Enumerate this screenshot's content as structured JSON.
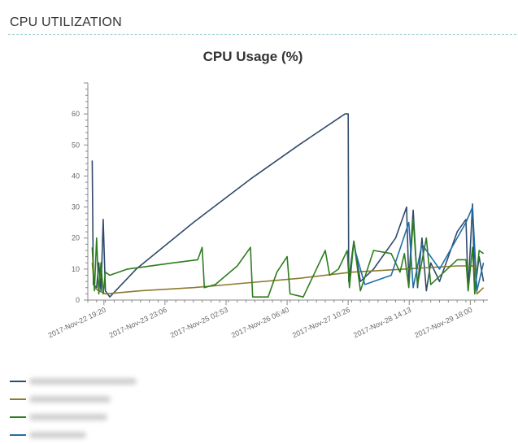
{
  "header": {
    "title": "CPU UTILIZATION"
  },
  "chart_data": {
    "type": "line",
    "title": "CPU Usage (%)",
    "xlabel": "",
    "ylabel": "",
    "ylim": [
      0,
      70
    ],
    "yticks": [
      0,
      10,
      20,
      30,
      40,
      50,
      60
    ],
    "xlim": [
      "2017-11-22 12:00",
      "2017-11-30 02:00"
    ],
    "xticks": [
      "2017-Nov-22 19:20",
      "2017-Nov-23 23:06",
      "2017-Nov-25 02:53",
      "2017-Nov-26 06:40",
      "2017-Nov-27 10:26",
      "2017-Nov-28 14:13",
      "2017-Nov-29 18:00"
    ],
    "grid": false,
    "legend": "bottom-left",
    "series": [
      {
        "color": "#2f4a6b",
        "points": [
          [
            "2017-11-22 14:00",
            45
          ],
          [
            "2017-11-22 14:30",
            5
          ],
          [
            "2017-11-22 16:00",
            4
          ],
          [
            "2017-11-22 17:00",
            12
          ],
          [
            "2017-11-22 18:00",
            3
          ],
          [
            "2017-11-22 19:00",
            26
          ],
          [
            "2017-11-22 20:00",
            3
          ],
          [
            "2017-11-22 22:00",
            1
          ],
          [
            "2017-11-23 10:00",
            10
          ],
          [
            "2017-11-24 12:00",
            25
          ],
          [
            "2017-11-25 14:00",
            39
          ],
          [
            "2017-11-26 12:00",
            50
          ],
          [
            "2017-11-27 09:00",
            60
          ],
          [
            "2017-11-27 10:26",
            60
          ],
          [
            "2017-11-27 10:40",
            6
          ],
          [
            "2017-11-27 13:00",
            19
          ],
          [
            "2017-11-27 16:00",
            6
          ],
          [
            "2017-11-27 22:00",
            10
          ],
          [
            "2017-11-28 08:00",
            20
          ],
          [
            "2017-11-28 13:00",
            30
          ],
          [
            "2017-11-28 14:00",
            6
          ],
          [
            "2017-11-28 16:00",
            29
          ],
          [
            "2017-11-28 18:00",
            4
          ],
          [
            "2017-11-28 20:00",
            20
          ],
          [
            "2017-11-28 22:00",
            3
          ],
          [
            "2017-11-29 00:00",
            12
          ],
          [
            "2017-11-29 04:00",
            6
          ],
          [
            "2017-11-29 12:00",
            22
          ],
          [
            "2017-11-29 16:00",
            26
          ],
          [
            "2017-11-29 17:00",
            3
          ],
          [
            "2017-11-29 19:00",
            31
          ],
          [
            "2017-11-29 20:00",
            3
          ],
          [
            "2017-11-29 22:00",
            14
          ],
          [
            "2017-11-30 00:00",
            6
          ]
        ]
      },
      {
        "color": "#8c7a2e",
        "points": [
          [
            "2017-11-22 14:00",
            12
          ],
          [
            "2017-11-22 15:00",
            4
          ],
          [
            "2017-11-22 17:00",
            3
          ],
          [
            "2017-11-22 20:00",
            2
          ],
          [
            "2017-11-23 12:00",
            3
          ],
          [
            "2017-11-24 12:00",
            4
          ],
          [
            "2017-11-25 12:00",
            5.5
          ],
          [
            "2017-11-26 12:00",
            7
          ],
          [
            "2017-11-27 12:00",
            9
          ],
          [
            "2017-11-28 12:00",
            10
          ],
          [
            "2017-11-29 12:00",
            11
          ],
          [
            "2017-11-29 20:00",
            11
          ],
          [
            "2017-11-29 21:00",
            2
          ],
          [
            "2017-11-30 00:00",
            4
          ]
        ]
      },
      {
        "color": "#2e7d1e",
        "points": [
          [
            "2017-11-22 14:00",
            17
          ],
          [
            "2017-11-22 15:00",
            3
          ],
          [
            "2017-11-22 16:00",
            20
          ],
          [
            "2017-11-22 17:00",
            2
          ],
          [
            "2017-11-22 18:00",
            12
          ],
          [
            "2017-11-22 19:00",
            2
          ],
          [
            "2017-11-22 20:00",
            9
          ],
          [
            "2017-11-22 22:00",
            8
          ],
          [
            "2017-11-23 06:00",
            10
          ],
          [
            "2017-11-24 03:00",
            12
          ],
          [
            "2017-11-24 14:00",
            13
          ],
          [
            "2017-11-24 16:00",
            17
          ],
          [
            "2017-11-24 17:00",
            4
          ],
          [
            "2017-11-24 22:00",
            5
          ],
          [
            "2017-11-25 08:00",
            11
          ],
          [
            "2017-11-25 14:00",
            17
          ],
          [
            "2017-11-25 15:00",
            1
          ],
          [
            "2017-11-25 22:00",
            1
          ],
          [
            "2017-11-26 02:00",
            9
          ],
          [
            "2017-11-26 06:40",
            14
          ],
          [
            "2017-11-26 08:00",
            2
          ],
          [
            "2017-11-26 14:00",
            1
          ],
          [
            "2017-11-26 18:00",
            7
          ],
          [
            "2017-11-27 00:00",
            16
          ],
          [
            "2017-11-27 02:00",
            8
          ],
          [
            "2017-11-27 06:00",
            10
          ],
          [
            "2017-11-27 10:00",
            16
          ],
          [
            "2017-11-27 11:00",
            4
          ],
          [
            "2017-11-27 13:00",
            19
          ],
          [
            "2017-11-27 16:00",
            3
          ],
          [
            "2017-11-27 22:00",
            16
          ],
          [
            "2017-11-28 06:00",
            15
          ],
          [
            "2017-11-28 10:00",
            9
          ],
          [
            "2017-11-28 12:00",
            15
          ],
          [
            "2017-11-28 14:00",
            4
          ],
          [
            "2017-11-28 16:00",
            26
          ],
          [
            "2017-11-28 18:00",
            5
          ],
          [
            "2017-11-28 22:00",
            20
          ],
          [
            "2017-11-29 00:00",
            5
          ],
          [
            "2017-11-29 12:00",
            13
          ],
          [
            "2017-11-29 16:00",
            13
          ],
          [
            "2017-11-29 17:00",
            3
          ],
          [
            "2017-11-29 19:00",
            17
          ],
          [
            "2017-11-29 20:00",
            2
          ],
          [
            "2017-11-29 22:00",
            16
          ],
          [
            "2017-11-30 00:00",
            15
          ]
        ]
      },
      {
        "color": "#1f6fa8",
        "points": [
          [
            "2017-11-27 14:00",
            15
          ],
          [
            "2017-11-27 18:00",
            5
          ],
          [
            "2017-11-28 06:00",
            8
          ],
          [
            "2017-11-28 14:00",
            25
          ],
          [
            "2017-11-28 16:00",
            4
          ],
          [
            "2017-11-28 20:00",
            18
          ],
          [
            "2017-11-29 04:00",
            10
          ],
          [
            "2017-11-29 16:00",
            25
          ],
          [
            "2017-11-29 19:00",
            30
          ],
          [
            "2017-11-29 21:00",
            3
          ],
          [
            "2017-11-30 00:00",
            12
          ]
        ]
      }
    ]
  }
}
